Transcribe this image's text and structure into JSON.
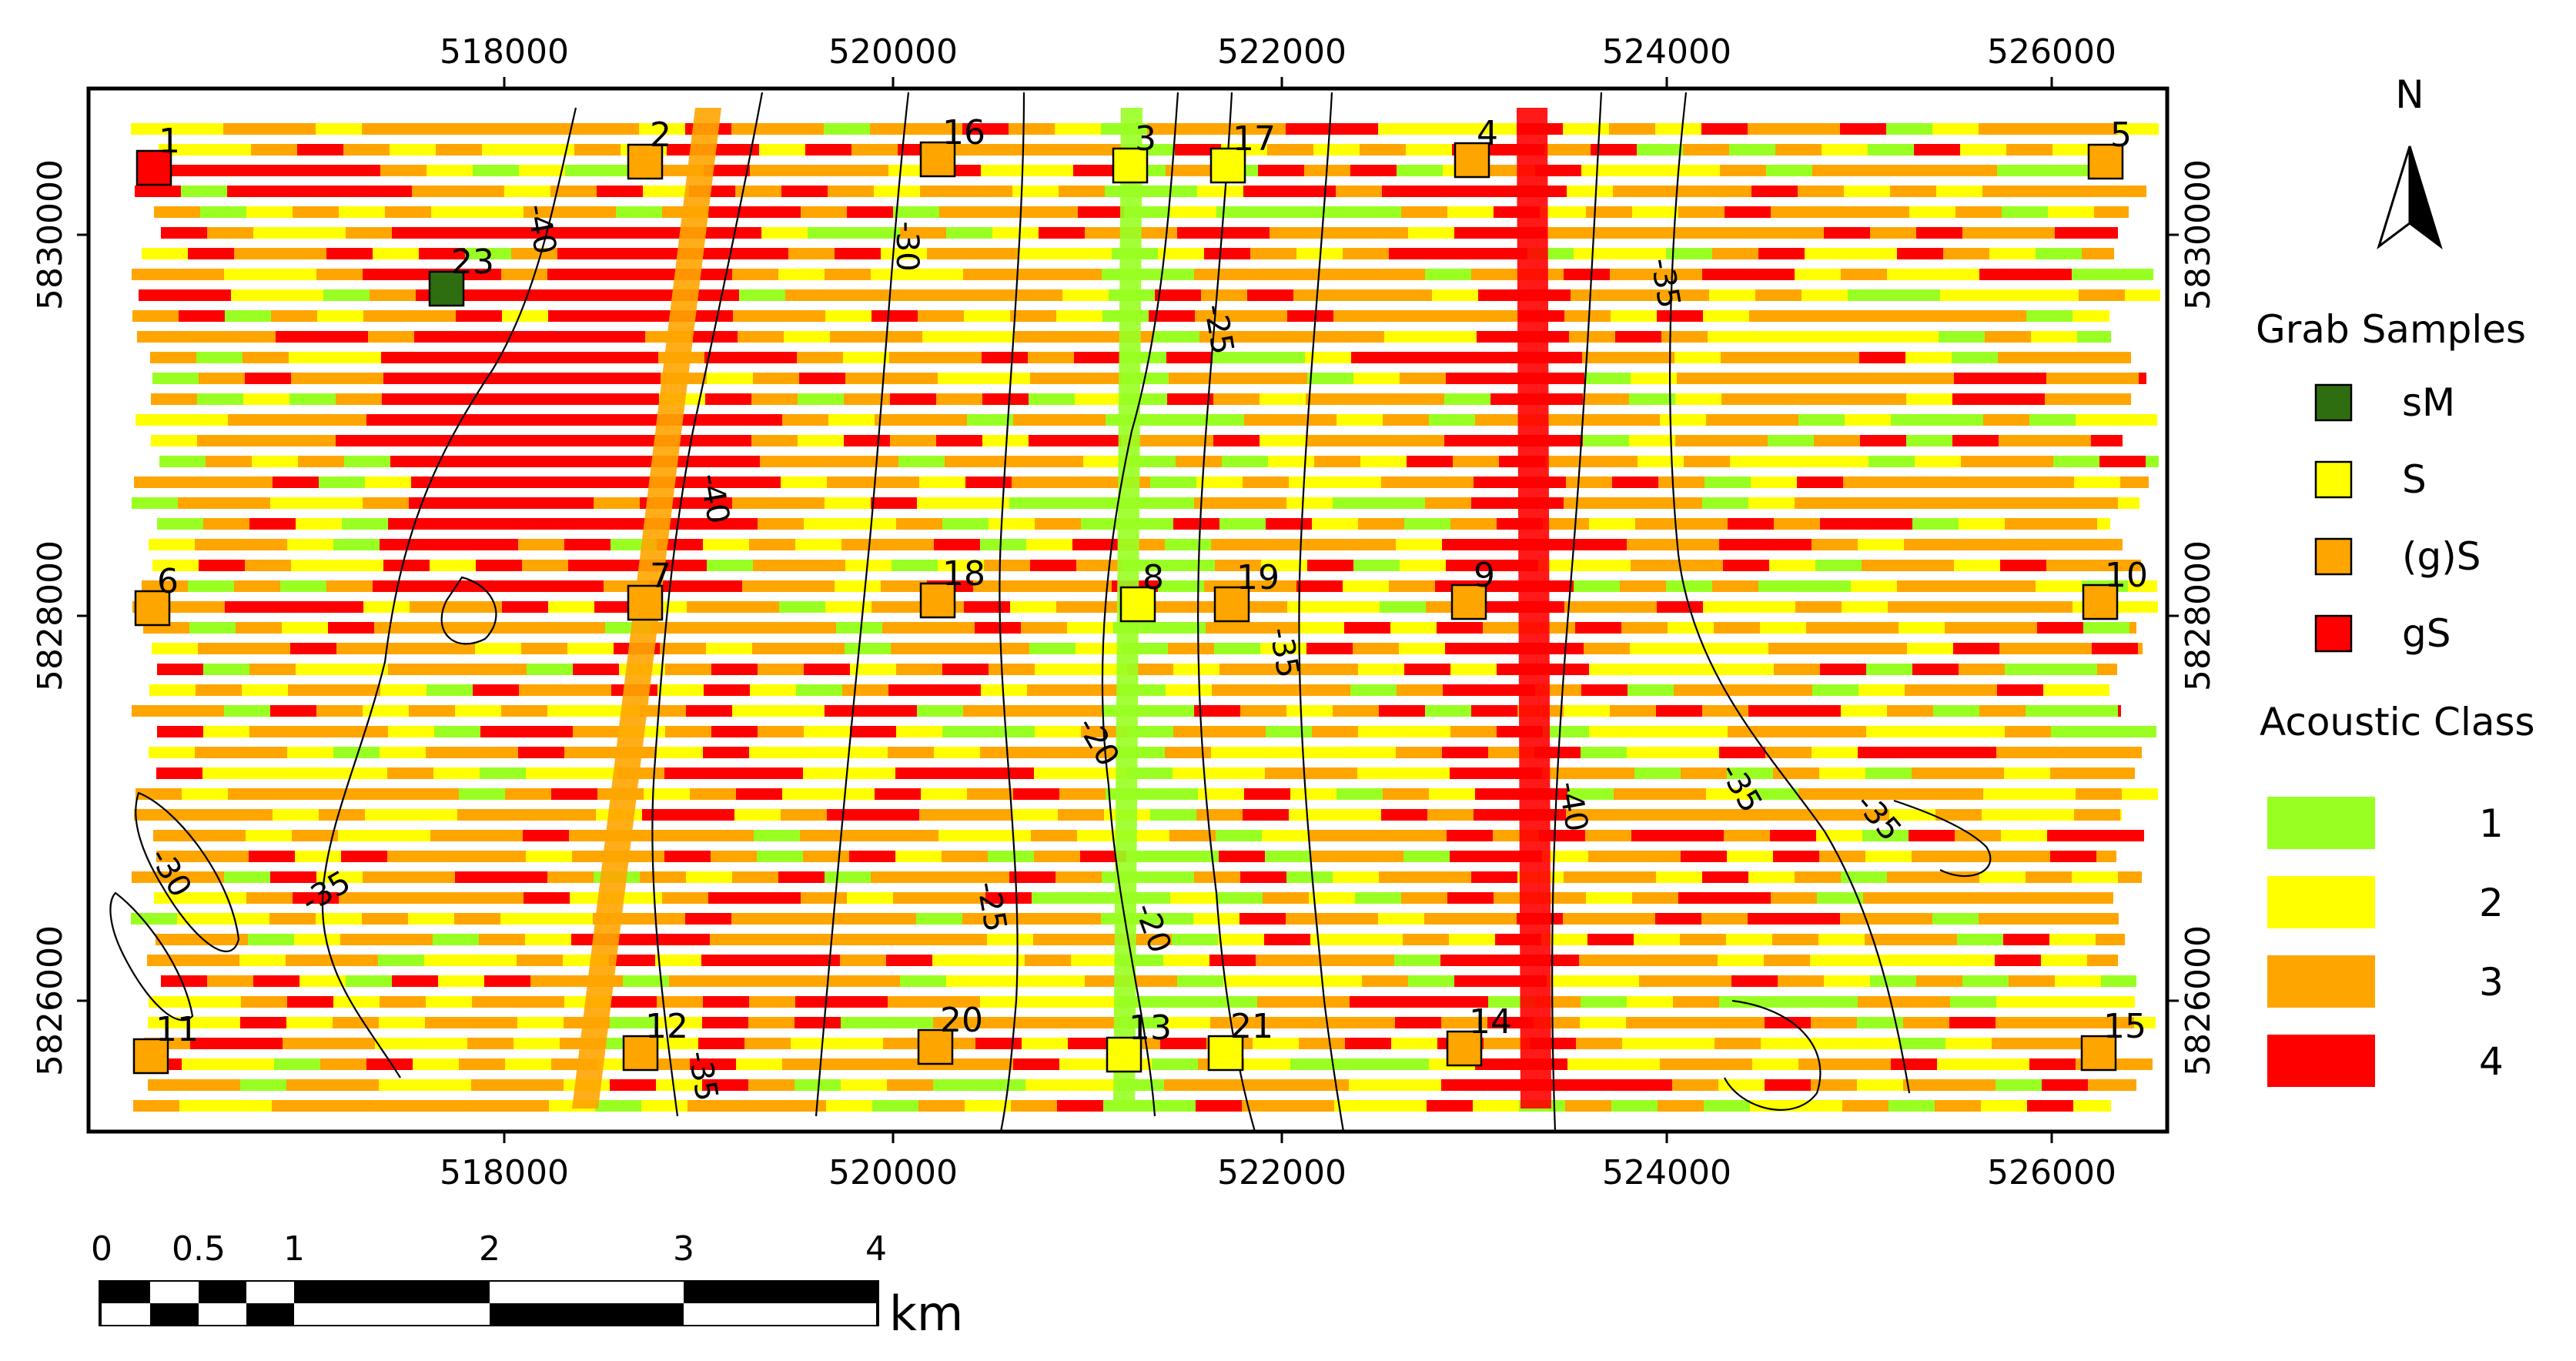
{
  "map": {
    "x_ticks": [
      "518000",
      "520000",
      "522000",
      "524000",
      "526000"
    ],
    "y_ticks": [
      "5830000",
      "5828000",
      "5826000"
    ],
    "contour_labels": [
      "-40",
      "-30",
      "-25",
      "-35",
      "-40",
      "-35",
      "-20",
      "-40",
      "-35",
      "-35",
      "-30",
      "-35",
      "-25",
      "-20",
      "-35"
    ]
  },
  "samples": [
    {
      "id": "1",
      "class": "gS"
    },
    {
      "id": "2",
      "class": "(g)S"
    },
    {
      "id": "16",
      "class": "(g)S"
    },
    {
      "id": "3",
      "class": "S"
    },
    {
      "id": "17",
      "class": "S"
    },
    {
      "id": "4",
      "class": "(g)S"
    },
    {
      "id": "5",
      "class": "(g)S"
    },
    {
      "id": "23",
      "class": "sM"
    },
    {
      "id": "6",
      "class": "(g)S"
    },
    {
      "id": "7",
      "class": "(g)S"
    },
    {
      "id": "18",
      "class": "(g)S"
    },
    {
      "id": "8",
      "class": "S"
    },
    {
      "id": "19",
      "class": "(g)S"
    },
    {
      "id": "9",
      "class": "(g)S"
    },
    {
      "id": "10",
      "class": "(g)S"
    },
    {
      "id": "11",
      "class": "(g)S"
    },
    {
      "id": "12",
      "class": "(g)S"
    },
    {
      "id": "20",
      "class": "(g)S"
    },
    {
      "id": "13",
      "class": "S"
    },
    {
      "id": "21",
      "class": "S"
    },
    {
      "id": "14",
      "class": "(g)S"
    },
    {
      "id": "15",
      "class": "(g)S"
    }
  ],
  "north": {
    "label": "N"
  },
  "legend": {
    "grab_title": "Grab Samples",
    "grab_items": [
      {
        "label": "sM",
        "color": "#2f6e10"
      },
      {
        "label": "S",
        "color": "#ffff00"
      },
      {
        "label": "(g)S",
        "color": "#ffa500"
      },
      {
        "label": "gS",
        "color": "#ff0000"
      }
    ],
    "acoustic_title": "Acoustic Class",
    "acoustic_items": [
      {
        "label": "1",
        "color": "#99ff22"
      },
      {
        "label": "2",
        "color": "#ffff00"
      },
      {
        "label": "3",
        "color": "#ffa500"
      },
      {
        "label": "4",
        "color": "#ff0000"
      }
    ]
  },
  "scalebar": {
    "labels": [
      "0",
      "0.5",
      "1",
      "2",
      "3",
      "4"
    ],
    "unit": "km"
  },
  "colors": {
    "class1": "#99ff22",
    "class2": "#ffff00",
    "class3": "#ffa500",
    "class4": "#ff0000"
  }
}
